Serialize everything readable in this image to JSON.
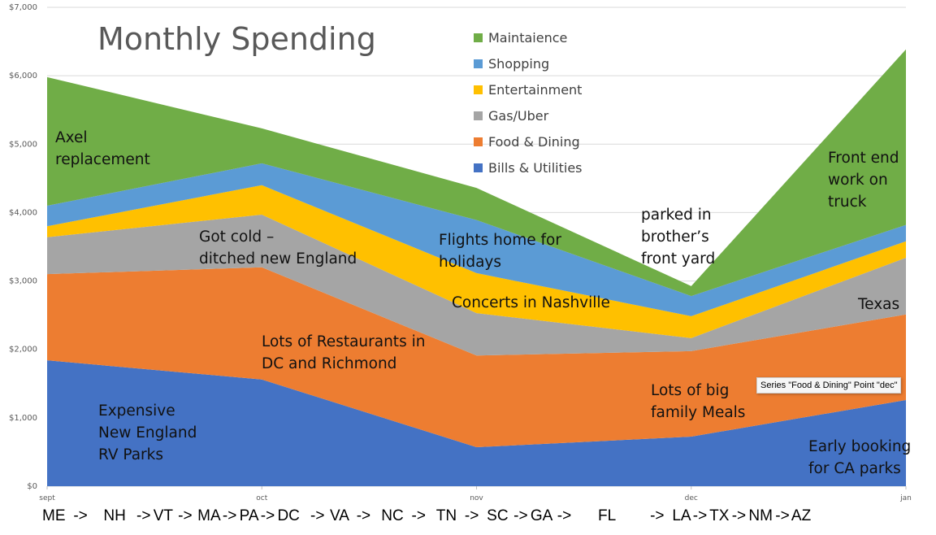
{
  "chart_data": {
    "type": "area",
    "stacked": true,
    "title": "Monthly Spending",
    "categories": [
      "sept",
      "oct",
      "nov",
      "dec",
      "jan"
    ],
    "ylim": [
      0,
      7000
    ],
    "yticks": [
      "$0",
      "$1,000",
      "$2,000",
      "$3,000",
      "$4,000",
      "$5,000",
      "$6,000",
      "$7,000"
    ],
    "grid": true,
    "legend_position": "top-center",
    "series": [
      {
        "name": "Bills & Utilities",
        "color": "#4472c4",
        "values": [
          1840,
          1560,
          570,
          725,
          1260
        ]
      },
      {
        "name": "Food & Dining",
        "color": "#ed7d31",
        "values": [
          1260,
          1640,
          1340,
          1250,
          1250
        ]
      },
      {
        "name": "Gas/Uber",
        "color": "#a5a5a5",
        "values": [
          540,
          770,
          620,
          190,
          830
        ]
      },
      {
        "name": "Entertainment",
        "color": "#ffc000",
        "values": [
          160,
          430,
          585,
          320,
          240
        ]
      },
      {
        "name": "Shopping",
        "color": "#5b9bd5",
        "values": [
          300,
          320,
          775,
          295,
          240
        ]
      },
      {
        "name": "Maintaience",
        "color": "#70ad47",
        "values": [
          1880,
          510,
          470,
          145,
          2565
        ]
      }
    ],
    "annotations": [
      "Axel\nreplacement",
      "Got cold –\nditched new England",
      "Flights home for\nholidays",
      "parked in\nbrother’s\nfront yard",
      "Front end\nwork on\ntruck",
      "Concerts in Nashville",
      "Texas",
      "Lots of Restaurants in\nDC and Richmond",
      "Lots of big\nfamily Meals",
      "Expensive\nNew England\nRV Parks",
      "Early booking\nfor CA parks"
    ]
  },
  "route": "ME   ->      NH    -> VT  ->  MA -> PA -> DC    ->  VA   ->    NC   ->    TN   ->   SC  -> GA  ->          FL             ->   LA -> TX -> NM -> AZ",
  "tooltip": "Series \"Food & Dining\" Point \"dec\""
}
